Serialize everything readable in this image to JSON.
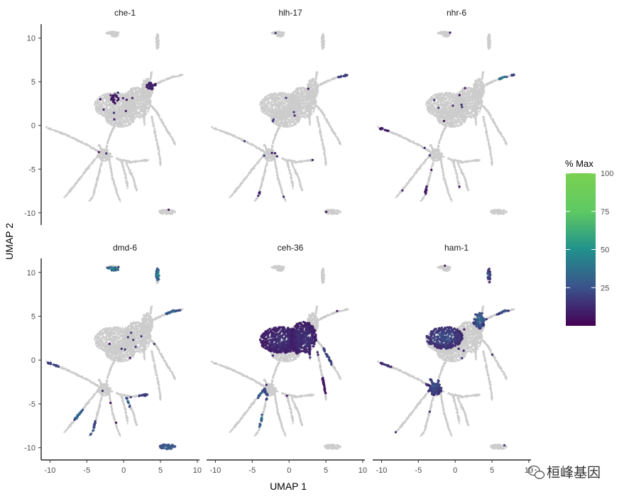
{
  "chart_data": {
    "type": "scatter",
    "facets": [
      {
        "title": "che-1",
        "hotspots": [
          [
            6.0,
            2.6,
            1.0,
            0.35,
            0.5
          ],
          [
            6.6,
            0.5,
            1.0,
            0.3,
            0.3
          ],
          [
            7.2,
            -1.5,
            0.6,
            0.25,
            0.2
          ],
          [
            3.8,
            4.5,
            0.7,
            0.4,
            0.15
          ],
          [
            -1.2,
            3.0,
            0.5,
            0.5,
            0.1
          ]
        ]
      },
      {
        "title": "hlh-17",
        "hotspots": [
          [
            6.5,
            3.7,
            0.35,
            0.35,
            0.8
          ],
          [
            7.1,
            5.7,
            0.8,
            0.25,
            0.3
          ],
          [
            3.5,
            -3.5,
            0.8,
            0.5,
            0.15
          ],
          [
            -3.6,
            -8.0,
            0.6,
            0.5,
            0.2
          ]
        ]
      },
      {
        "title": "nhr-6",
        "hotspots": [
          [
            6.8,
            5.3,
            0.9,
            0.3,
            0.6
          ],
          [
            7.9,
            5.8,
            0.3,
            0.2,
            0.3
          ],
          [
            1.8,
            -5.0,
            0.6,
            0.8,
            0.5
          ],
          [
            -4.3,
            -7.2,
            0.5,
            0.8,
            0.15
          ],
          [
            -9.6,
            -0.4,
            0.8,
            0.3,
            0.1
          ],
          [
            -0.6,
            -6.2,
            0.4,
            0.4,
            0.1
          ]
        ]
      },
      {
        "title": "dmd-6",
        "hotspots": [
          [
            7.2,
            5.3,
            1.6,
            0.4,
            0.5
          ],
          [
            -1.5,
            10.4,
            1.0,
            0.2,
            0.6
          ],
          [
            4.7,
            9.8,
            0.4,
            0.7,
            0.55
          ],
          [
            -6.4,
            -5.9,
            0.9,
            1.0,
            0.5
          ],
          [
            -4.4,
            -7.5,
            0.6,
            1.2,
            0.4
          ],
          [
            0.8,
            -4.8,
            0.8,
            0.6,
            0.4
          ],
          [
            -9.5,
            -0.5,
            1.2,
            0.4,
            0.25
          ],
          [
            6.0,
            -9.9,
            1.2,
            0.4,
            0.4
          ],
          [
            3.0,
            -4.2,
            1.0,
            0.4,
            0.3
          ]
        ]
      },
      {
        "title": "ceh-36",
        "hotspots": [
          [
            -4.2,
            -6.4,
            0.6,
            1.3,
            0.6
          ],
          [
            -3.6,
            -4.0,
            0.7,
            0.8,
            0.4
          ],
          [
            5.8,
            0.8,
            1.2,
            1.4,
            0.35
          ],
          [
            -1.0,
            2.3,
            3.0,
            1.5,
            0.18
          ],
          [
            2.0,
            2.4,
            1.8,
            2.0,
            0.18
          ],
          [
            4.5,
            -3.0,
            1.0,
            1.0,
            0.1
          ]
        ]
      },
      {
        "title": "ham-1",
        "hotspots": [
          [
            3.4,
            4.6,
            1.0,
            1.0,
            0.4
          ],
          [
            -3.0,
            0.0,
            0.8,
            0.8,
            0.4
          ],
          [
            -1.5,
            2.6,
            2.5,
            1.3,
            0.28
          ],
          [
            4.6,
            9.8,
            0.5,
            0.6,
            0.3
          ],
          [
            6.8,
            5.3,
            1.2,
            0.4,
            0.35
          ],
          [
            -2.8,
            -3.0,
            1.2,
            1.0,
            0.3
          ],
          [
            -9.5,
            -0.5,
            1.2,
            0.4,
            0.2
          ]
        ]
      }
    ],
    "xlabel": "UMAP 1",
    "ylabel": "UMAP 2",
    "xlim": [
      -11.2,
      10.3
    ],
    "ylim": [
      -11.4,
      11.6
    ],
    "xticks": [
      -10,
      -5,
      0,
      5,
      10
    ],
    "xtick_labels": [
      "-10",
      "-5",
      "0",
      "5",
      "10"
    ],
    "yticks": [
      -10,
      -5,
      0,
      5,
      10
    ],
    "ytick_labels": [
      "-10",
      "-5",
      "0",
      "5",
      "10"
    ],
    "legend": {
      "title": "% Max",
      "min": 0,
      "max": 100,
      "ticks": [
        25,
        50,
        75,
        100
      ],
      "tick_labels": [
        "25",
        "50",
        "75",
        "100"
      ],
      "palette": "viridis",
      "position": "right"
    },
    "background_color": "#cccccc"
  },
  "watermark": "桓峰基因",
  "watermark_icon": "wechat-icon"
}
